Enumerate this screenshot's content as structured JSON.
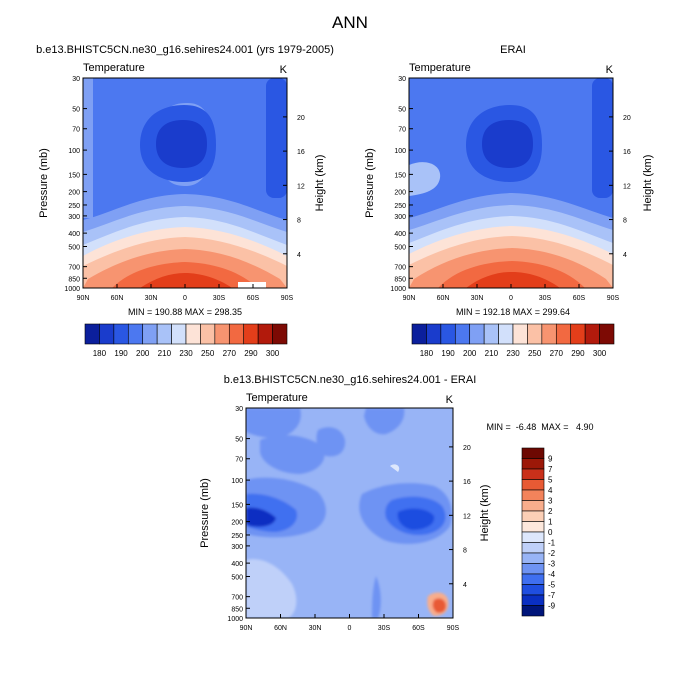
{
  "page": {
    "title": "ANN"
  },
  "palette": {
    "abs": [
      "#0b1f9c",
      "#1a3ccc",
      "#2a57e3",
      "#4c78f0",
      "#7fa0f4",
      "#a9c2f8",
      "#d2e0fb",
      "#fde3d7",
      "#fbc1a6",
      "#f79470",
      "#f26941",
      "#e33e1a",
      "#b21a0c",
      "#7d0a04"
    ],
    "diff": [
      "#00157a",
      "#0a2fc2",
      "#1f4ee0",
      "#3f6ff0",
      "#6e93f3",
      "#98b4f6",
      "#bfd0f9",
      "#dde7fc",
      "#fde8dc",
      "#fbcfb6",
      "#f8ad8c",
      "#f3835b",
      "#e85a34",
      "#c9301a",
      "#9c1808",
      "#6d0802"
    ]
  },
  "chart_data": [
    {
      "id": "model",
      "type": "contour",
      "title": "b.e13.BHISTC5CN.ne30_g16.sehires24.001 (yrs 1979-2005)",
      "left_label": "Temperature",
      "right_label": "K",
      "ylabel": "Pressure (mb)",
      "y2label": "Height (km)",
      "xticks": [
        "90N",
        "60N",
        "30N",
        "0",
        "30S",
        "60S",
        "90S"
      ],
      "yticks": [
        "30",
        "50",
        "70",
        "100",
        "150",
        "200",
        "250",
        "300",
        "400",
        "500",
        "700",
        "850",
        "1000"
      ],
      "y2ticks": [
        "20",
        "16",
        "12",
        "8",
        "4"
      ],
      "stats": "MIN = 190.88  MAX = 298.35",
      "colorbar_labels": [
        "180",
        "190",
        "200",
        "210",
        "230",
        "250",
        "270",
        "290",
        "300"
      ],
      "xlim": [
        90,
        -90
      ],
      "ylim_mb": [
        1000,
        30
      ]
    },
    {
      "id": "obs",
      "type": "contour",
      "title": "ERAI",
      "left_label": "Temperature",
      "right_label": "K",
      "ylabel": "Pressure (mb)",
      "y2label": "Height (km)",
      "xticks": [
        "90N",
        "60N",
        "30N",
        "0",
        "30S",
        "60S",
        "90S"
      ],
      "yticks": [
        "30",
        "50",
        "70",
        "100",
        "150",
        "200",
        "250",
        "300",
        "400",
        "500",
        "700",
        "850",
        "1000"
      ],
      "y2ticks": [
        "20",
        "16",
        "12",
        "8",
        "4"
      ],
      "stats": "MIN = 192.18  MAX = 299.64",
      "colorbar_labels": [
        "180",
        "190",
        "200",
        "210",
        "230",
        "250",
        "270",
        "290",
        "300"
      ],
      "xlim": [
        90,
        -90
      ],
      "ylim_mb": [
        1000,
        30
      ]
    },
    {
      "id": "diff",
      "type": "contour",
      "title": "b.e13.BHISTC5CN.ne30_g16.sehires24.001 - ERAI",
      "left_label": "Temperature",
      "right_label": "K",
      "ylabel": "Pressure (mb)",
      "y2label": "Height (km)",
      "xticks": [
        "90N",
        "60N",
        "30N",
        "0",
        "30S",
        "60S",
        "90S"
      ],
      "yticks": [
        "30",
        "50",
        "70",
        "100",
        "150",
        "200",
        "250",
        "300",
        "400",
        "500",
        "700",
        "850",
        "1000"
      ],
      "y2ticks": [
        "20",
        "16",
        "12",
        "8",
        "4"
      ],
      "stats": "MIN =  -6.48  MAX =   4.90",
      "colorbar_labels": [
        "9",
        "7",
        "5",
        "4",
        "3",
        "2",
        "1",
        "0",
        "-1",
        "-2",
        "-3",
        "-4",
        "-5",
        "-7",
        "-9"
      ],
      "xlim": [
        90,
        -90
      ],
      "ylim_mb": [
        1000,
        30
      ]
    }
  ]
}
